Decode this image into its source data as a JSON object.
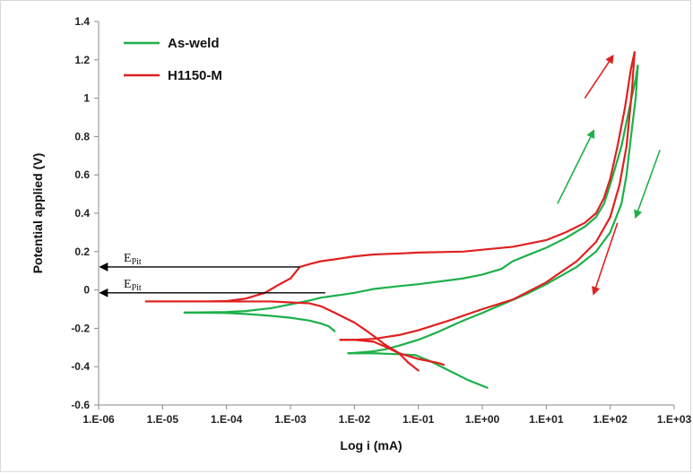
{
  "chart_data": {
    "type": "line",
    "title": "",
    "xlabel": "Log i (mA)",
    "ylabel": "Potential applied (V)",
    "x_scale": "log",
    "xlim": [
      1e-06,
      1000
    ],
    "ylim": [
      -0.6,
      1.4
    ],
    "x_ticks": [
      "1.E-06",
      "1.E-05",
      "1.E-04",
      "1.E-03",
      "1.E-02",
      "1.E-01",
      "1.E+00",
      "1.E+01",
      "1.E+02",
      "1.E+03"
    ],
    "y_ticks": [
      "-0.6",
      "-0.4",
      "-0.2",
      "0",
      "0.2",
      "0.4",
      "0.6",
      "0.8",
      "1",
      "1.2",
      "1.4"
    ],
    "grid": false,
    "legend_position": "top-left",
    "series": [
      {
        "name": "As-weld",
        "color": "#1db04a",
        "segments": [
          [
            [
              0.0049,
              -0.215
            ],
            [
              0.004,
              -0.19
            ],
            [
              0.003,
              -0.175
            ],
            [
              0.002,
              -0.16
            ],
            [
              0.001,
              -0.145
            ],
            [
              0.0005,
              -0.135
            ],
            [
              0.0002,
              -0.125
            ],
            [
              0.0001,
              -0.12
            ],
            [
              2.2e-05,
              -0.118
            ]
          ],
          [
            [
              2.2e-05,
              -0.118
            ],
            [
              0.0001,
              -0.115
            ],
            [
              0.0002,
              -0.11
            ],
            [
              0.0005,
              -0.095
            ],
            [
              0.001,
              -0.075
            ],
            [
              0.002,
              -0.055
            ],
            [
              0.003,
              -0.04
            ],
            [
              0.005,
              -0.03
            ],
            [
              0.01,
              -0.015
            ],
            [
              0.02,
              0.005
            ],
            [
              0.05,
              0.02
            ],
            [
              0.1,
              0.03
            ],
            [
              0.5,
              0.06
            ],
            [
              1,
              0.08
            ],
            [
              2,
              0.11
            ],
            [
              3,
              0.15
            ],
            [
              5,
              0.18
            ],
            [
              10,
              0.22
            ],
            [
              20,
              0.27
            ],
            [
              40,
              0.33
            ],
            [
              60,
              0.38
            ],
            [
              80,
              0.45
            ],
            [
              100,
              0.55
            ],
            [
              150,
              0.75
            ],
            [
              200,
              0.95
            ],
            [
              250,
              1.1
            ],
            [
              270,
              1.17
            ]
          ],
          [
            [
              270,
              1.17
            ],
            [
              250,
              1.0
            ],
            [
              220,
              0.85
            ],
            [
              180,
              0.6
            ],
            [
              150,
              0.45
            ],
            [
              100,
              0.3
            ],
            [
              60,
              0.2
            ],
            [
              30,
              0.12
            ],
            [
              10,
              0.03
            ],
            [
              5,
              -0.02
            ],
            [
              1,
              -0.12
            ],
            [
              0.5,
              -0.16
            ],
            [
              0.2,
              -0.22
            ],
            [
              0.1,
              -0.26
            ],
            [
              0.05,
              -0.29
            ],
            [
              0.03,
              -0.31
            ],
            [
              0.02,
              -0.32
            ],
            [
              0.01,
              -0.328
            ],
            [
              0.008,
              -0.33
            ]
          ],
          [
            [
              0.008,
              -0.33
            ],
            [
              0.02,
              -0.33
            ],
            [
              0.05,
              -0.335
            ],
            [
              0.09,
              -0.34
            ],
            [
              0.15,
              -0.37
            ],
            [
              0.3,
              -0.42
            ],
            [
              0.6,
              -0.47
            ],
            [
              1.2,
              -0.51
            ]
          ]
        ]
      },
      {
        "name": "H1150-M",
        "color": "#e02020",
        "segments": [
          [
            [
              0.1,
              -0.42
            ],
            [
              0.07,
              -0.38
            ],
            [
              0.05,
              -0.33
            ],
            [
              0.03,
              -0.285
            ],
            [
              0.02,
              -0.24
            ],
            [
              0.015,
              -0.21
            ],
            [
              0.01,
              -0.17
            ],
            [
              0.005,
              -0.12
            ],
            [
              0.003,
              -0.085
            ],
            [
              0.002,
              -0.07
            ],
            [
              0.001,
              -0.065
            ],
            [
              0.0005,
              -0.06
            ],
            [
              0.0002,
              -0.06
            ],
            [
              5.5e-06,
              -0.06
            ]
          ],
          [
            [
              5.5e-06,
              -0.06
            ],
            [
              5e-05,
              -0.06
            ],
            [
              0.0001,
              -0.058
            ],
            [
              0.0002,
              -0.045
            ],
            [
              0.0004,
              -0.015
            ],
            [
              0.0006,
              0.02
            ],
            [
              0.001,
              0.06
            ],
            [
              0.0014,
              0.12
            ],
            [
              0.002,
              0.135
            ],
            [
              0.003,
              0.15
            ],
            [
              0.005,
              0.16
            ],
            [
              0.01,
              0.175
            ],
            [
              0.02,
              0.185
            ],
            [
              0.05,
              0.19
            ],
            [
              0.1,
              0.195
            ],
            [
              0.5,
              0.2
            ],
            [
              1,
              0.21
            ],
            [
              3,
              0.225
            ],
            [
              10,
              0.26
            ],
            [
              20,
              0.3
            ],
            [
              40,
              0.35
            ],
            [
              60,
              0.4
            ],
            [
              80,
              0.48
            ],
            [
              100,
              0.58
            ],
            [
              130,
              0.75
            ],
            [
              170,
              0.95
            ],
            [
              210,
              1.15
            ],
            [
              240,
              1.24
            ]
          ],
          [
            [
              240,
              1.24
            ],
            [
              220,
              1.05
            ],
            [
              180,
              0.75
            ],
            [
              140,
              0.55
            ],
            [
              100,
              0.38
            ],
            [
              60,
              0.25
            ],
            [
              30,
              0.15
            ],
            [
              10,
              0.04
            ],
            [
              3,
              -0.05
            ],
            [
              1,
              -0.1
            ],
            [
              0.3,
              -0.16
            ],
            [
              0.1,
              -0.21
            ],
            [
              0.05,
              -0.235
            ],
            [
              0.02,
              -0.255
            ],
            [
              0.01,
              -0.26
            ],
            [
              0.006,
              -0.26
            ]
          ],
          [
            [
              0.006,
              -0.26
            ],
            [
              0.01,
              -0.26
            ],
            [
              0.02,
              -0.27
            ],
            [
              0.03,
              -0.295
            ],
            [
              0.05,
              -0.33
            ],
            [
              0.1,
              -0.36
            ],
            [
              0.2,
              -0.38
            ],
            [
              0.25,
              -0.39
            ]
          ]
        ]
      }
    ],
    "annotations": [
      {
        "name": "epit-red",
        "label": "E",
        "sub": "Pit",
        "from": [
          0.0014,
          0.12
        ],
        "to": [
          1.05e-06,
          0.12
        ],
        "color": "#000000"
      },
      {
        "name": "epit-green",
        "label": "E",
        "sub": "Pit",
        "from": [
          0.0035,
          -0.015
        ],
        "to": [
          1.05e-06,
          -0.015
        ],
        "color": "#000000"
      }
    ],
    "direction_arrows": [
      {
        "name": "green-up",
        "color": "#1db04a",
        "from": [
          15,
          0.45
        ],
        "to": [
          55,
          0.83
        ]
      },
      {
        "name": "green-down",
        "color": "#1db04a",
        "from": [
          600,
          0.73
        ],
        "to": [
          250,
          0.38
        ]
      },
      {
        "name": "red-up",
        "color": "#e02020",
        "from": [
          40,
          1.0
        ],
        "to": [
          110,
          1.22
        ]
      },
      {
        "name": "red-down",
        "color": "#e02020",
        "from": [
          130,
          0.35
        ],
        "to": [
          55,
          -0.02
        ]
      }
    ]
  }
}
